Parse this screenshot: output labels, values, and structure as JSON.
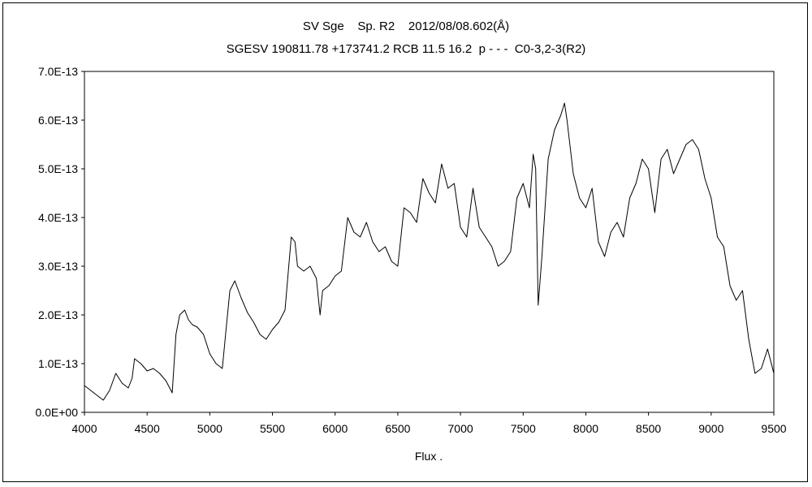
{
  "chart_data": {
    "type": "line",
    "title_line1": "SV Sge    Sp. R2    2012/08/08.602(Å)",
    "title_line2": "SGESV 190811.78 +173741.2 RCB 11.5 16.2  p - - -  C0-3,2-3(R2)",
    "xlabel": "Flux    .",
    "ylabel": "",
    "xlim": [
      4000,
      9500
    ],
    "ylim": [
      0,
      7e-13
    ],
    "x_ticks": [
      4000,
      4500,
      5000,
      5500,
      6000,
      6500,
      7000,
      7500,
      8000,
      8500,
      9000,
      9500
    ],
    "y_ticks": [
      "0.0E+00",
      "1.0E-13",
      "2.0E-13",
      "3.0E-13",
      "4.0E-13",
      "5.0E-13",
      "6.0E-13",
      "7.0E-13"
    ],
    "y_tick_values": [
      0,
      1e-13,
      2e-13,
      3e-13,
      4e-13,
      5e-13,
      6e-13,
      7e-13
    ],
    "grid": false,
    "legend": "none",
    "line_color": "#000000",
    "series": [
      {
        "x": [
          4000,
          4050,
          4100,
          4150,
          4200,
          4250,
          4300,
          4350,
          4380,
          4400,
          4450,
          4500,
          4550,
          4600,
          4650,
          4700,
          4730,
          4760,
          4800,
          4830,
          4860,
          4900,
          4950,
          5000,
          5050,
          5100,
          5130,
          5160,
          5200,
          5250,
          5300,
          5350,
          5400,
          5450,
          5500,
          5550,
          5600,
          5630,
          5650,
          5680,
          5700,
          5750,
          5800,
          5850,
          5880,
          5900,
          5950,
          6000,
          6050,
          6100,
          6150,
          6200,
          6250,
          6300,
          6350,
          6400,
          6450,
          6500,
          6550,
          6600,
          6650,
          6700,
          6750,
          6800,
          6850,
          6900,
          6950,
          7000,
          7050,
          7100,
          7150,
          7200,
          7250,
          7300,
          7350,
          7400,
          7450,
          7500,
          7550,
          7580,
          7600,
          7620,
          7650,
          7700,
          7750,
          7800,
          7830,
          7850,
          7900,
          7950,
          8000,
          8050,
          8100,
          8150,
          8200,
          8250,
          8300,
          8350,
          8400,
          8450,
          8500,
          8550,
          8600,
          8650,
          8700,
          8750,
          8800,
          8850,
          8900,
          8950,
          9000,
          9050,
          9100,
          9150,
          9200,
          9250,
          9300,
          9350,
          9400,
          9450,
          9500
        ],
        "y": [
          5.5e-14,
          4.5e-14,
          3.5e-14,
          2.5e-14,
          4.5e-14,
          8e-14,
          6e-14,
          5e-14,
          7e-14,
          1.1e-13,
          1e-13,
          8.5e-14,
          9e-14,
          8e-14,
          6.5e-14,
          4e-14,
          1.6e-13,
          2e-13,
          2.1e-13,
          1.9e-13,
          1.8e-13,
          1.75e-13,
          1.6e-13,
          1.2e-13,
          1e-13,
          9e-14,
          1.7e-13,
          2.5e-13,
          2.7e-13,
          2.35e-13,
          2.05e-13,
          1.85e-13,
          1.6e-13,
          1.5e-13,
          1.7e-13,
          1.85e-13,
          2.1e-13,
          3e-13,
          3.6e-13,
          3.5e-13,
          3e-13,
          2.9e-13,
          3e-13,
          2.75e-13,
          2e-13,
          2.5e-13,
          2.6e-13,
          2.8e-13,
          2.9e-13,
          4e-13,
          3.7e-13,
          3.6e-13,
          3.9e-13,
          3.5e-13,
          3.3e-13,
          3.4e-13,
          3.1e-13,
          3e-13,
          4.2e-13,
          4.1e-13,
          3.9e-13,
          4.8e-13,
          4.5e-13,
          4.3e-13,
          5.1e-13,
          4.6e-13,
          4.7e-13,
          3.8e-13,
          3.6e-13,
          4.6e-13,
          3.8e-13,
          3.6e-13,
          3.4e-13,
          3e-13,
          3.1e-13,
          3.3e-13,
          4.4e-13,
          4.7e-13,
          4.2e-13,
          5.3e-13,
          5e-13,
          2.2e-13,
          3.2e-13,
          5.2e-13,
          5.8e-13,
          6.1e-13,
          6.35e-13,
          6e-13,
          4.9e-13,
          4.4e-13,
          4.2e-13,
          4.6e-13,
          3.5e-13,
          3.2e-13,
          3.7e-13,
          3.9e-13,
          3.6e-13,
          4.4e-13,
          4.7e-13,
          5.2e-13,
          5e-13,
          4.1e-13,
          5.2e-13,
          5.4e-13,
          4.9e-13,
          5.2e-13,
          5.5e-13,
          5.6e-13,
          5.4e-13,
          4.8e-13,
          4.4e-13,
          3.6e-13,
          3.4e-13,
          2.6e-13,
          2.3e-13,
          2.5e-13,
          1.5e-13,
          8e-14,
          9e-14,
          1.3e-13,
          8e-14
        ]
      }
    ]
  }
}
